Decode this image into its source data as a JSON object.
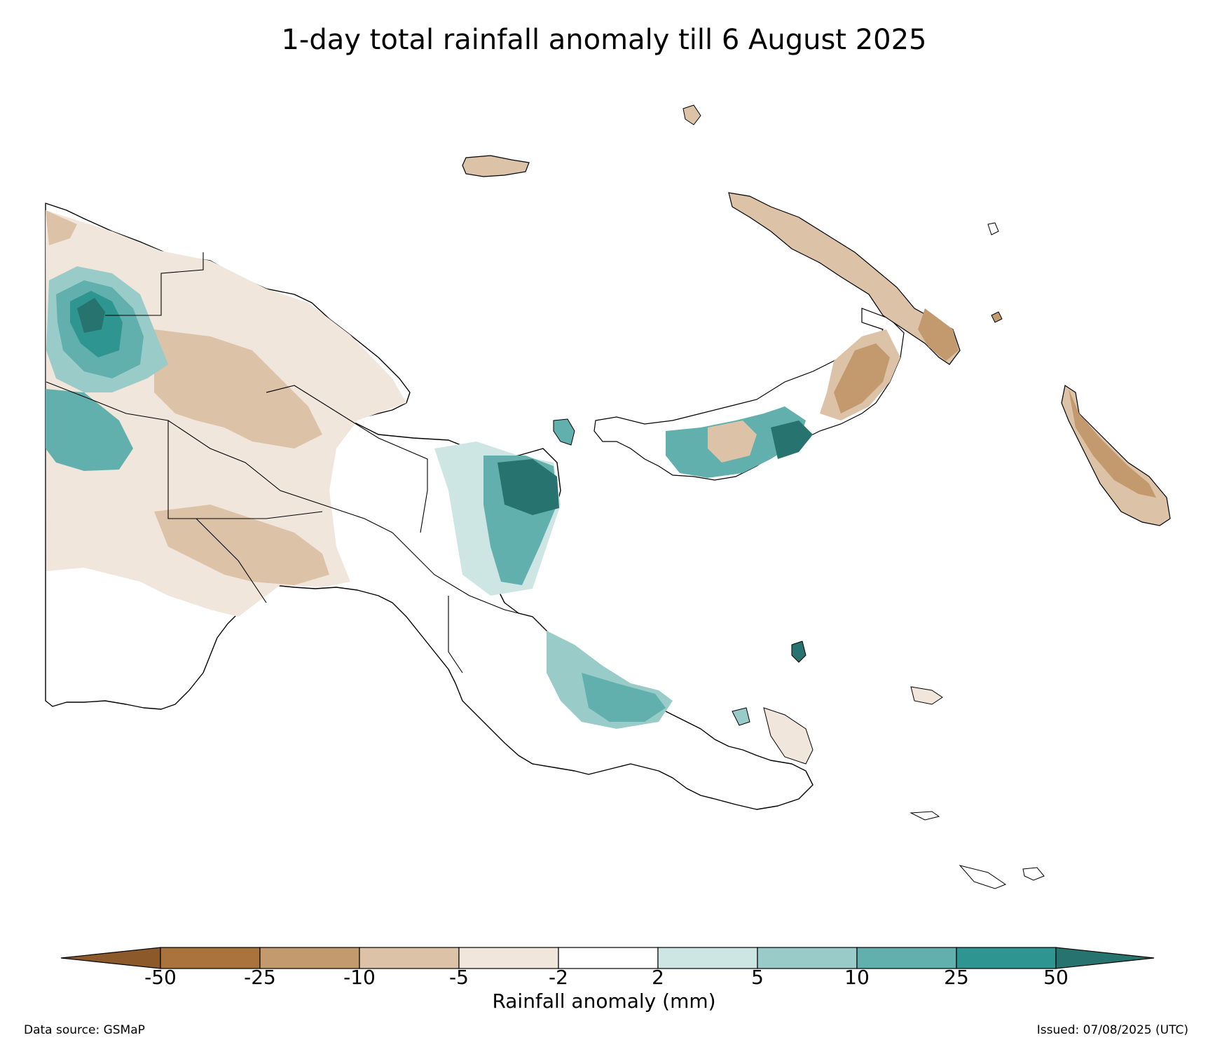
{
  "title": "1-day total rainfall anomaly till 6 August 2025",
  "colorbar": {
    "label": "Rainfall anomaly (mm)",
    "ticks": [
      "-50",
      "-25",
      "-10",
      "-5",
      "-2",
      "2",
      "5",
      "10",
      "25",
      "50"
    ],
    "colors": [
      "#8c5a2a",
      "#a8733d",
      "#c39a6e",
      "#dcc2a6",
      "#f1e6dc",
      "#ffffff",
      "#cde6e4",
      "#99cbc9",
      "#62b0ad",
      "#2f9590",
      "#27736f"
    ]
  },
  "footer": {
    "source": "Data source: GSMaP",
    "issued": "Issued: 07/08/2025 (UTC)"
  }
}
